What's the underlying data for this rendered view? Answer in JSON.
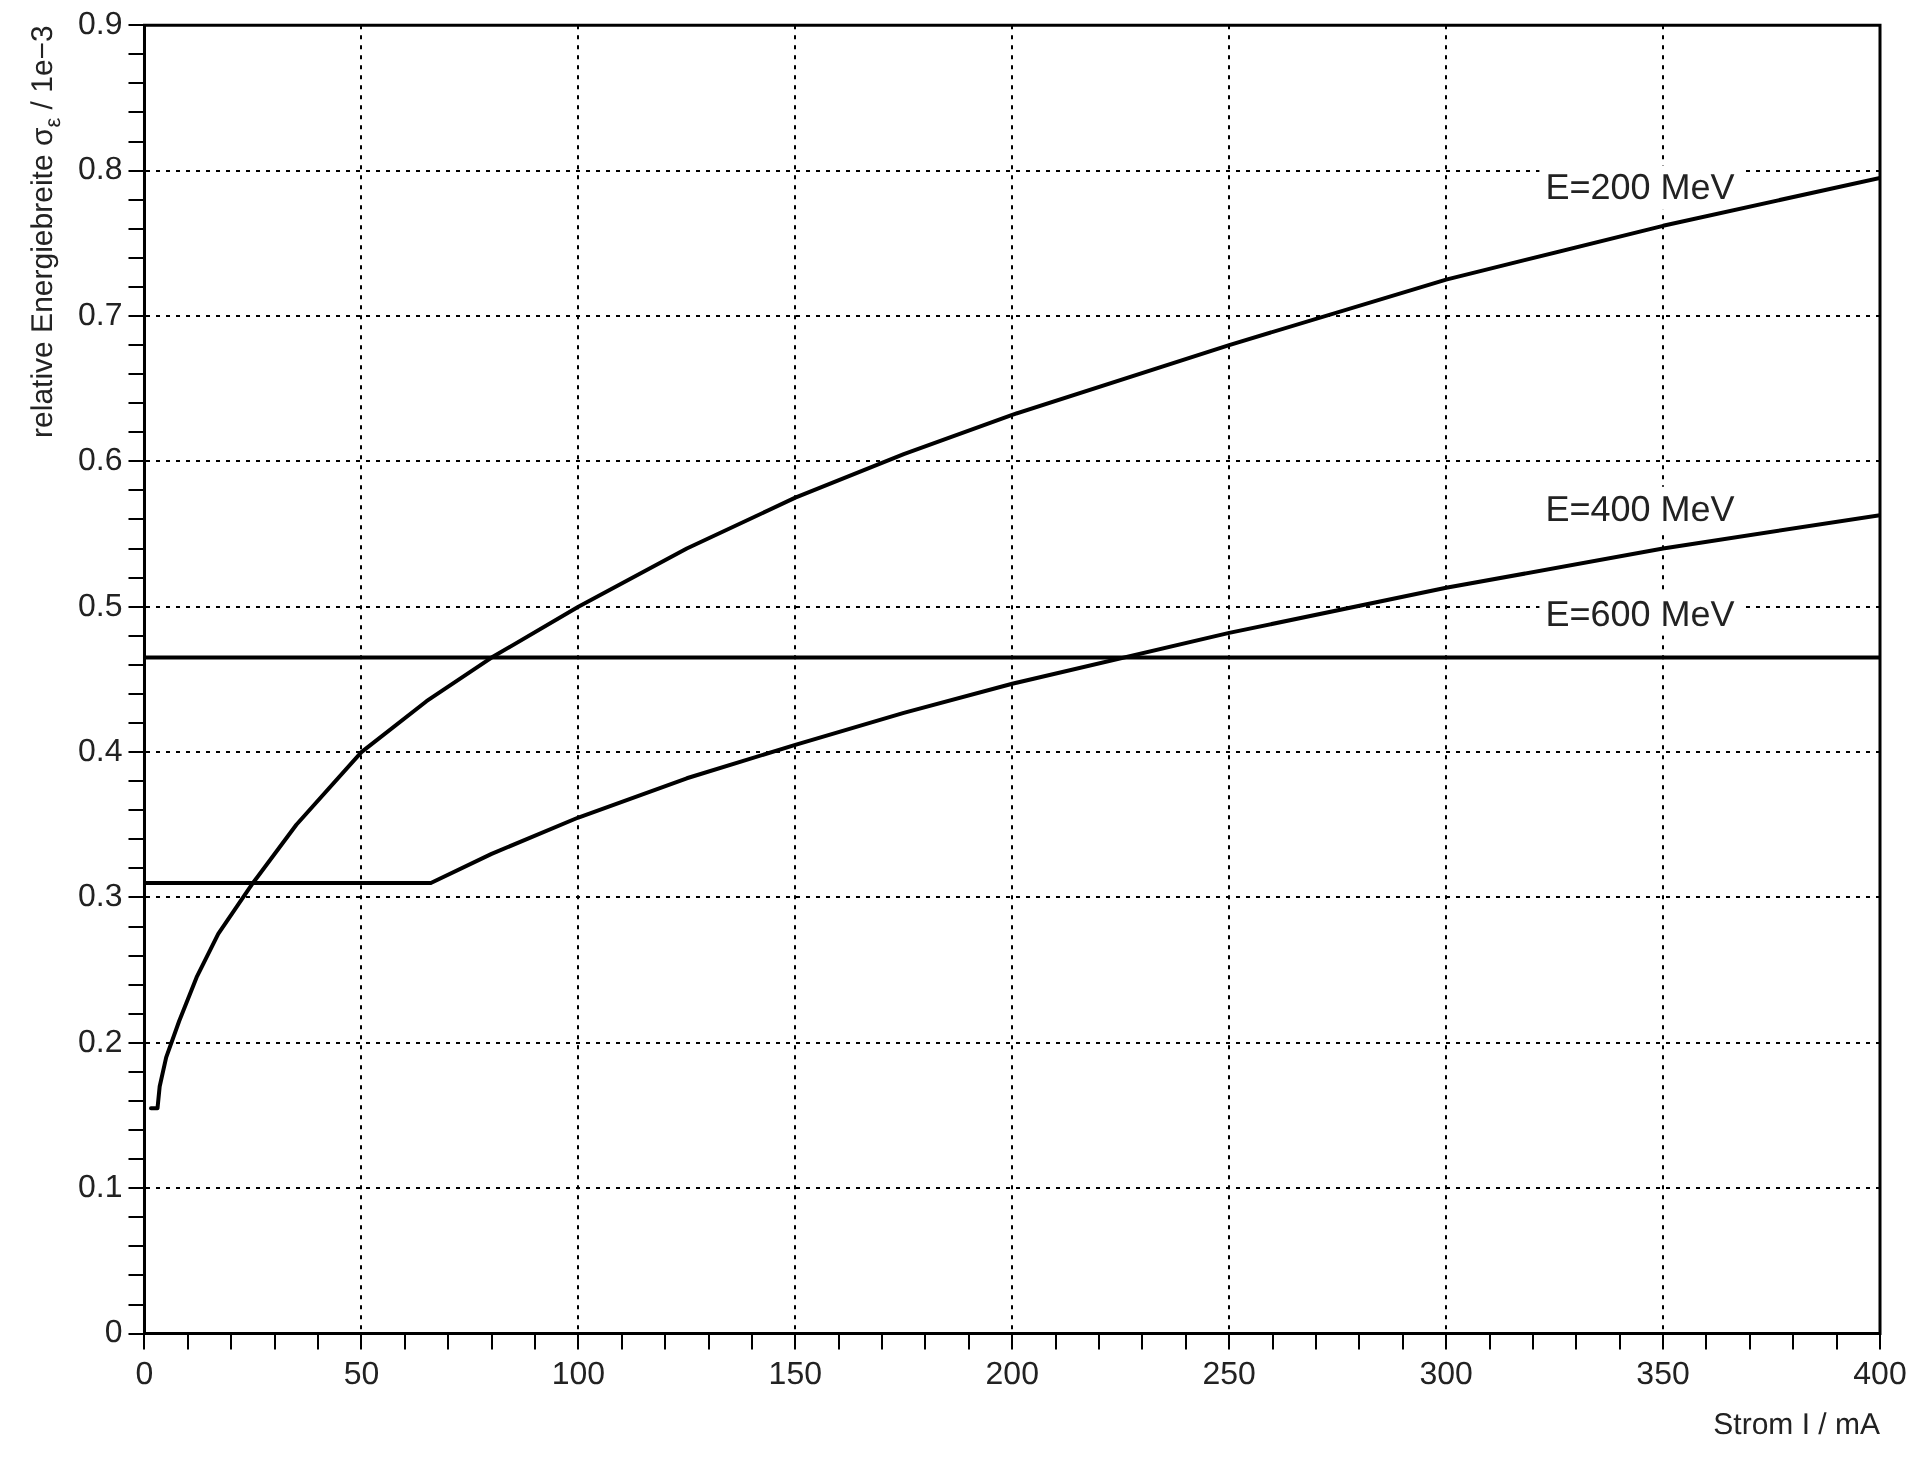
{
  "chart_data": {
    "type": "line",
    "xlabel": "Strom I / mA",
    "ylabel": "relative Energiebreite σ$_{ε}$ / 1e−3",
    "xlim": [
      0,
      400
    ],
    "ylim": [
      0,
      0.9
    ],
    "xticks": [
      0,
      {
        "value": 10,
        "label": null
      },
      {
        "value": 20,
        "label": null
      },
      {
        "value": 30,
        "label": null
      },
      {
        "value": 40,
        "label": null
      },
      50,
      {
        "value": 60,
        "label": null
      },
      {
        "value": 70,
        "label": null
      },
      {
        "value": 80,
        "label": null
      },
      {
        "value": 90,
        "label": null
      },
      100,
      {
        "value": 110,
        "label": null
      },
      {
        "value": 120,
        "label": null
      },
      {
        "value": 130,
        "label": null
      },
      {
        "value": 140,
        "label": null
      },
      150,
      {
        "value": 160,
        "label": null
      },
      {
        "value": 170,
        "label": null
      },
      {
        "value": 180,
        "label": null
      },
      {
        "value": 190,
        "label": null
      },
      200,
      {
        "value": 210,
        "label": null
      },
      {
        "value": 220,
        "label": null
      },
      {
        "value": 230,
        "label": null
      },
      {
        "value": 240,
        "label": null
      },
      250,
      {
        "value": 260,
        "label": null
      },
      {
        "value": 270,
        "label": null
      },
      {
        "value": 280,
        "label": null
      },
      {
        "value": 290,
        "label": null
      },
      300,
      {
        "value": 310,
        "label": null
      },
      {
        "value": 320,
        "label": null
      },
      {
        "value": 330,
        "label": null
      },
      {
        "value": 340,
        "label": null
      },
      350,
      {
        "value": 360,
        "label": null
      },
      {
        "value": 370,
        "label": null
      },
      {
        "value": 380,
        "label": null
      },
      {
        "value": 390,
        "label": null
      },
      400
    ],
    "yticks": [
      0,
      {
        "value": 0.02,
        "label": null
      },
      {
        "value": 0.04,
        "label": null
      },
      {
        "value": 0.06,
        "label": null
      },
      {
        "value": 0.08,
        "label": null
      },
      0.1,
      {
        "value": 0.12,
        "label": null
      },
      {
        "value": 0.14,
        "label": null
      },
      {
        "value": 0.16,
        "label": null
      },
      {
        "value": 0.18,
        "label": null
      },
      0.2,
      {
        "value": 0.22,
        "label": null
      },
      {
        "value": 0.24,
        "label": null
      },
      {
        "value": 0.26,
        "label": null
      },
      {
        "value": 0.28,
        "label": null
      },
      0.3,
      {
        "value": 0.32,
        "label": null
      },
      {
        "value": 0.34,
        "label": null
      },
      {
        "value": 0.36,
        "label": null
      },
      {
        "value": 0.38,
        "label": null
      },
      0.4,
      {
        "value": 0.42,
        "label": null
      },
      {
        "value": 0.44,
        "label": null
      },
      {
        "value": 0.46,
        "label": null
      },
      {
        "value": 0.48,
        "label": null
      },
      0.5,
      {
        "value": 0.52,
        "label": null
      },
      {
        "value": 0.54,
        "label": null
      },
      {
        "value": 0.56,
        "label": null
      },
      {
        "value": 0.58,
        "label": null
      },
      0.6,
      {
        "value": 0.62,
        "label": null
      },
      {
        "value": 0.64,
        "label": null
      },
      {
        "value": 0.66,
        "label": null
      },
      {
        "value": 0.68,
        "label": null
      },
      0.7,
      {
        "value": 0.72,
        "label": null
      },
      {
        "value": 0.74,
        "label": null
      },
      {
        "value": 0.76,
        "label": null
      },
      {
        "value": 0.78,
        "label": null
      },
      0.8,
      {
        "value": 0.82,
        "label": null
      },
      {
        "value": 0.84,
        "label": null
      },
      {
        "value": 0.86,
        "label": null
      },
      {
        "value": 0.88,
        "label": null
      },
      0.9
    ],
    "grid": true,
    "legend": false,
    "marker": "none",
    "line_style": "solid",
    "series": [
      {
        "name": "E=200 MeV",
        "color": "#000000",
        "x": [
          1.5,
          3,
          3.5,
          5,
          8,
          12,
          17,
          25,
          35,
          50,
          65,
          80,
          100,
          125,
          150,
          175,
          200,
          250,
          300,
          350,
          400
        ],
        "values": [
          0.155,
          0.155,
          0.17,
          0.19,
          0.215,
          0.245,
          0.275,
          0.31,
          0.35,
          0.4,
          0.435,
          0.465,
          0.5,
          0.54,
          0.575,
          0.605,
          0.632,
          0.68,
          0.725,
          0.762,
          0.795
        ]
      },
      {
        "name": "E=400 MeV",
        "color": "#000000",
        "x": [
          0,
          66,
          80,
          100,
          125,
          150,
          175,
          200,
          250,
          300,
          350,
          400
        ],
        "values": [
          0.31,
          0.31,
          0.33,
          0.355,
          0.382,
          0.405,
          0.427,
          0.447,
          0.482,
          0.513,
          0.54,
          0.563
        ]
      },
      {
        "name": "E=600 MeV",
        "color": "#000000",
        "x": [
          0,
          400
        ],
        "values": [
          0.465,
          0.465
        ]
      }
    ]
  }
}
